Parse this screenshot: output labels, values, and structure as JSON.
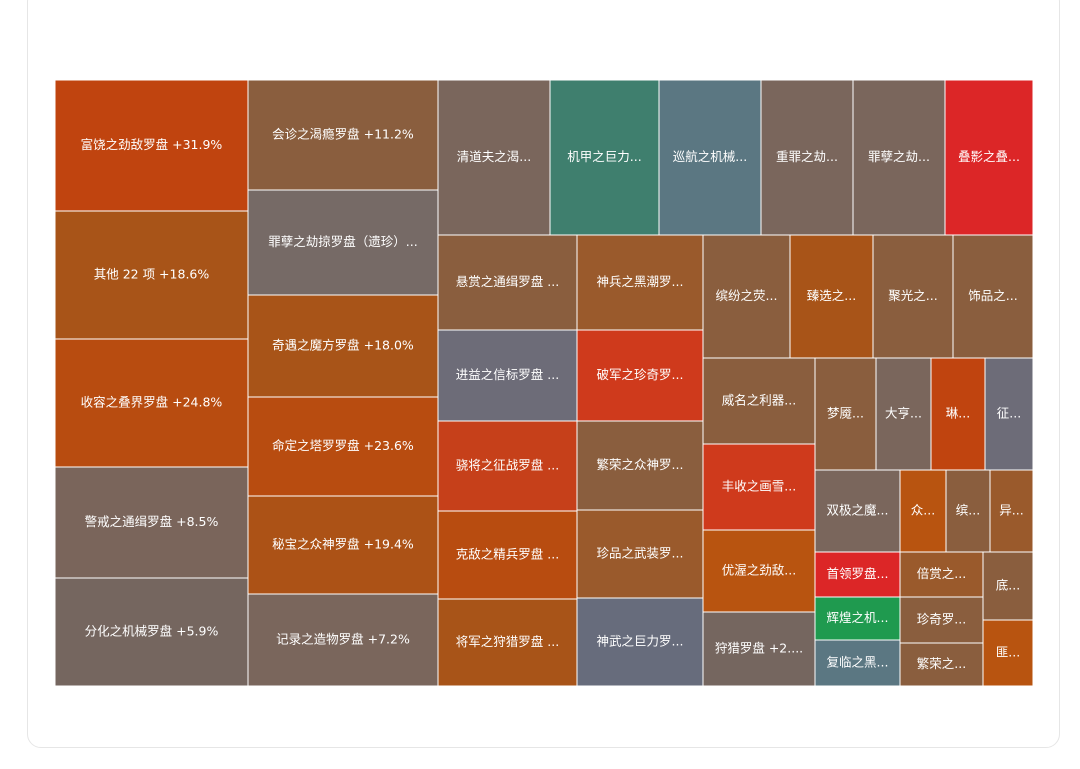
{
  "chart_data": {
    "type": "treemap",
    "items": [
      {
        "label": "富饶之劲敌罗盘 +31.9%",
        "color": "#c0440f"
      },
      {
        "label": "其他 22 项 +18.6%",
        "color": "#a85418"
      },
      {
        "label": "收容之叠界罗盘 +24.8%",
        "color": "#b84c10"
      },
      {
        "label": "警戒之通缉罗盘 +8.5%",
        "color": "#7a655b"
      },
      {
        "label": "分化之机械罗盘 +5.9%",
        "color": "#75665f"
      },
      {
        "label": "会诊之渴瘾罗盘 +11.2%",
        "color": "#8a5e3e"
      },
      {
        "label": "罪孽之劫掠罗盘（遗珍）...",
        "color": "#766a66"
      },
      {
        "label": "奇遇之魔方罗盘 +18.0%",
        "color": "#a85418"
      },
      {
        "label": "命定之塔罗罗盘 +23.6%",
        "color": "#b84c10"
      },
      {
        "label": "秘宝之众神罗盘 +19.4%",
        "color": "#ac5216"
      },
      {
        "label": "记录之造物罗盘 +7.2%",
        "color": "#7a665c"
      },
      {
        "label": "清道夫之渴...",
        "color": "#7a665c"
      },
      {
        "label": "机甲之巨力...",
        "color": "#3f7f6e"
      },
      {
        "label": "巡航之机械...",
        "color": "#5b7782"
      },
      {
        "label": "重罪之劫...",
        "color": "#7a665c"
      },
      {
        "label": "罪孽之劫...",
        "color": "#7a665c"
      },
      {
        "label": "叠影之叠...",
        "color": "#dc2627"
      },
      {
        "label": "悬赏之通缉罗盘 ...",
        "color": "#8a5e3e"
      },
      {
        "label": "进益之信标罗盘 ...",
        "color": "#6d6c78"
      },
      {
        "label": "骁将之征战罗盘 ...",
        "color": "#c6401a"
      },
      {
        "label": "克敌之精兵罗盘 ...",
        "color": "#b84c10"
      },
      {
        "label": "将军之狩猎罗盘 ...",
        "color": "#a85418"
      },
      {
        "label": "神兵之黑潮罗...",
        "color": "#9a5a2c"
      },
      {
        "label": "破军之珍奇罗...",
        "color": "#cf3a1c"
      },
      {
        "label": "繁荣之众神罗...",
        "color": "#8a5e3e"
      },
      {
        "label": "珍品之武装罗...",
        "color": "#9a5a2c"
      },
      {
        "label": "神武之巨力罗...",
        "color": "#676c7c"
      },
      {
        "label": "缤纷之荧...",
        "color": "#8a5e3e"
      },
      {
        "label": "臻选之...",
        "color": "#a85418"
      },
      {
        "label": "聚光之...",
        "color": "#8a5e3e"
      },
      {
        "label": "饰品之...",
        "color": "#8a5e3e"
      },
      {
        "label": "威名之利器...",
        "color": "#8a5e3e"
      },
      {
        "label": "丰收之画雪...",
        "color": "#cf3a1c"
      },
      {
        "label": "优渥之劲敌...",
        "color": "#b85410"
      },
      {
        "label": "狩猎罗盘 +2....",
        "color": "#75665f"
      },
      {
        "label": "梦魇...",
        "color": "#8a5e3e"
      },
      {
        "label": "大亨...",
        "color": "#7a665c"
      },
      {
        "label": "琳...",
        "color": "#c0440f"
      },
      {
        "label": "征...",
        "color": "#6d6c78"
      },
      {
        "label": "双极之魔...",
        "color": "#7a665c"
      },
      {
        "label": "众...",
        "color": "#b85410"
      },
      {
        "label": "缤...",
        "color": "#8a5e3e"
      },
      {
        "label": "异...",
        "color": "#9a5a2c"
      },
      {
        "label": "首领罗盘...",
        "color": "#dc2627"
      },
      {
        "label": "辉煌之机...",
        "color": "#1f9a4f"
      },
      {
        "label": "复临之黑...",
        "color": "#5b7782"
      },
      {
        "label": "倍赏之...",
        "color": "#9a5a2c"
      },
      {
        "label": "珍奇罗...",
        "color": "#8a5e3e"
      },
      {
        "label": "繁荣之...",
        "color": "#8a5e3e"
      },
      {
        "label": "底...",
        "color": "#8a5e3e"
      },
      {
        "label": "匪...",
        "color": "#b85410"
      }
    ]
  }
}
